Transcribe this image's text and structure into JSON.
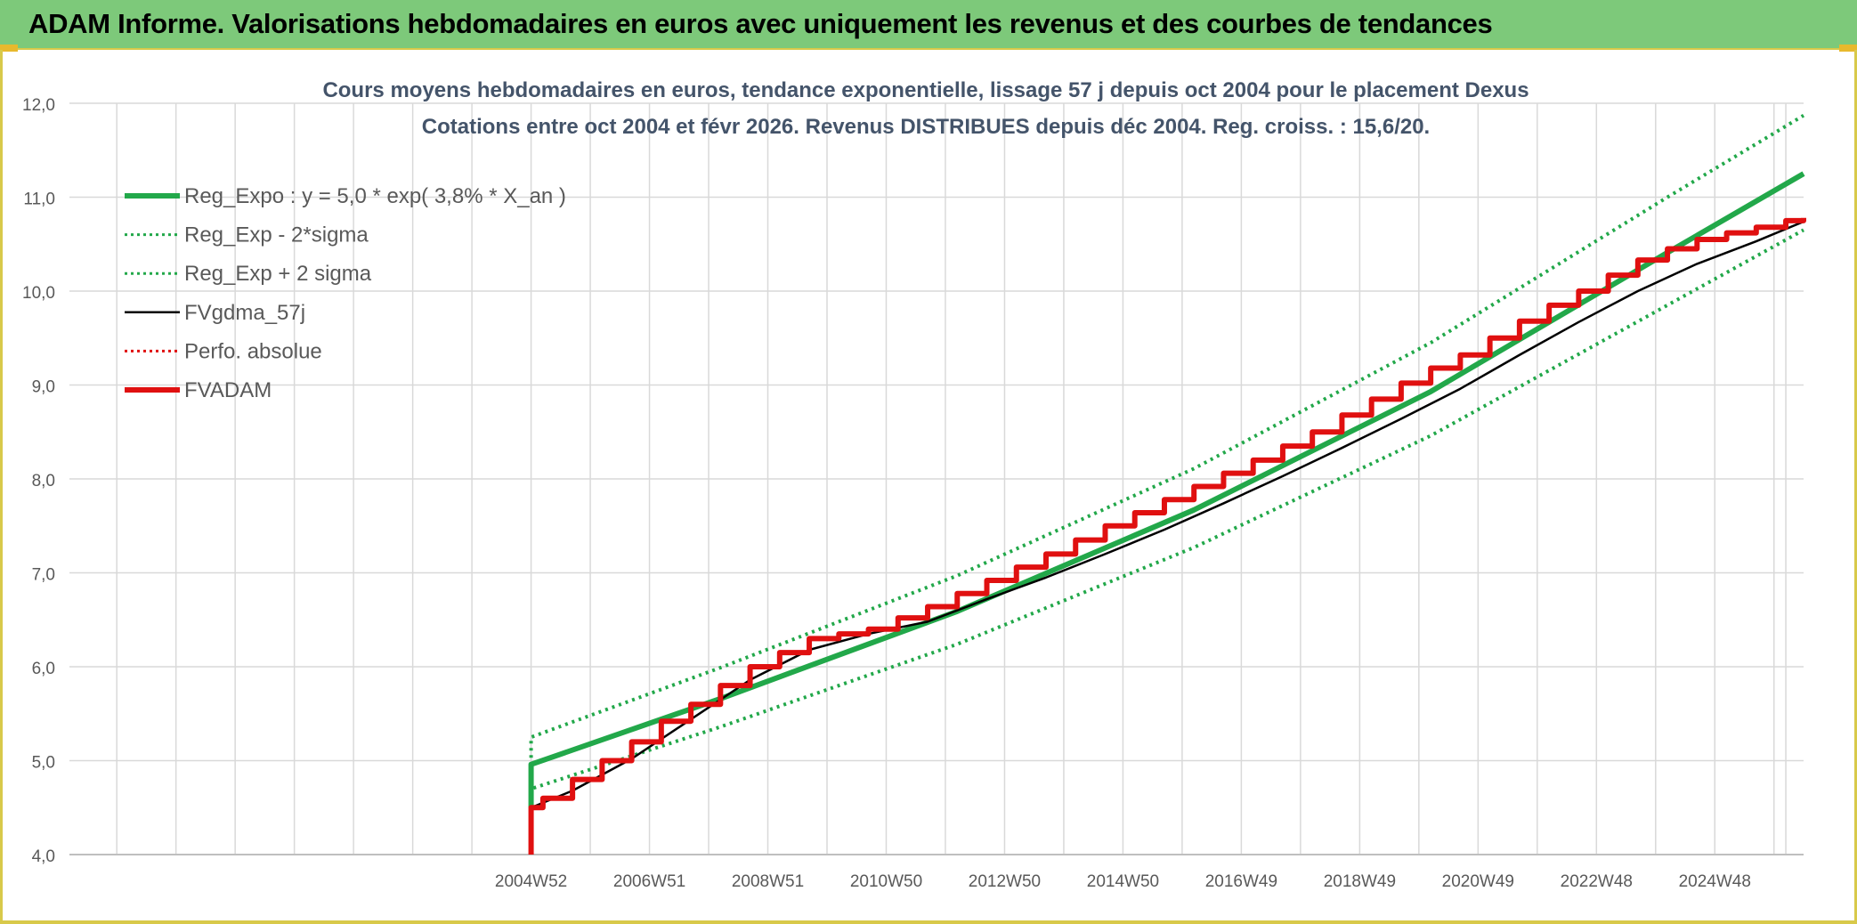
{
  "page": {
    "banner": "ADAM Informe. Valorisations hebdomadaires en euros avec uniquement les revenus et des courbes de tendances"
  },
  "chart_data": {
    "type": "line",
    "title": "Cours moyens hebdomadaires en euros, tendance exponentielle, lissage 57 j depuis oct 2004 pour le placement Dexus",
    "subtitle": "Cotations entre oct 2004 et févr 2026. Revenus DISTRIBUES depuis déc 2004. Reg. croiss. : 15,6/20.",
    "xlabel": "",
    "ylabel": "",
    "ylim": [
      4.0,
      12.0
    ],
    "yticks": [
      "4,0",
      "5,0",
      "6,0",
      "7,0",
      "8,0",
      "9,0",
      "10,0",
      "11,0",
      "12,0"
    ],
    "x_tick_labels": [
      "2004W52",
      "2006W51",
      "2008W51",
      "2010W50",
      "2012W50",
      "2014W50",
      "2016W49",
      "2018W49",
      "2020W49",
      "2022W48",
      "2024W48"
    ],
    "x_range": [
      1997.0,
      2026.3
    ],
    "grid": true,
    "legend_position": "top-left",
    "colors": {
      "reg": "#22a84a",
      "fvgdma": "#000000",
      "perfo": "#e01010",
      "fvadam": "#e01010"
    },
    "series": [
      {
        "name": "Reg_Expo : y = 5,0 * exp( 3,8% *  X_an )",
        "style": "solid-thick",
        "color": "#22a84a",
        "x": [
          2004.8,
          2004.8,
          2008.0,
          2012.0,
          2016.0,
          2020.0,
          2024.0,
          2026.3
        ],
        "y": [
          4.5,
          4.96,
          5.66,
          6.59,
          7.67,
          8.93,
          10.41,
          11.25
        ]
      },
      {
        "name": "Reg_Exp - 2*sigma",
        "style": "dotted",
        "color": "#22a84a",
        "x": [
          2004.8,
          2004.8,
          2008.0,
          2012.0,
          2016.0,
          2020.0,
          2024.0,
          2026.3
        ],
        "y": [
          4.5,
          4.7,
          5.36,
          6.24,
          7.27,
          8.46,
          9.85,
          10.65
        ]
      },
      {
        "name": "Reg_Exp + 2 sigma",
        "style": "dotted",
        "color": "#22a84a",
        "x": [
          2004.8,
          2004.8,
          2008.0,
          2012.0,
          2016.0,
          2020.0,
          2024.0,
          2026.3
        ],
        "y": [
          4.5,
          5.25,
          5.99,
          6.97,
          8.11,
          9.45,
          11.0,
          11.87
        ]
      },
      {
        "name": "FVgdma_57j",
        "style": "solid-thin",
        "color": "#000000",
        "x": [
          2004.8,
          2005.5,
          2006.5,
          2007.5,
          2008.5,
          2009.5,
          2010.5,
          2011.5,
          2012.5,
          2013.5,
          2014.5,
          2015.5,
          2016.5,
          2017.5,
          2018.5,
          2019.5,
          2020.5,
          2021.5,
          2022.5,
          2023.5,
          2024.5,
          2025.5,
          2026.3
        ],
        "y": [
          4.5,
          4.68,
          5.02,
          5.44,
          5.86,
          6.18,
          6.35,
          6.48,
          6.72,
          6.95,
          7.2,
          7.46,
          7.74,
          8.03,
          8.33,
          8.64,
          8.96,
          9.32,
          9.67,
          10.0,
          10.29,
          10.53,
          10.74
        ]
      },
      {
        "name": "Perfo. absolue",
        "style": "dotted",
        "color": "#e01010",
        "x": [],
        "y": []
      },
      {
        "name": "FVADAM",
        "style": "step-thick",
        "color": "#e01010",
        "x": [
          2004.8,
          2004.8,
          2005.0,
          2005.5,
          2006.0,
          2006.5,
          2007.0,
          2007.5,
          2008.0,
          2008.5,
          2009.0,
          2009.5,
          2010.0,
          2010.5,
          2011.0,
          2011.5,
          2012.0,
          2012.5,
          2013.0,
          2013.5,
          2014.0,
          2014.5,
          2015.0,
          2015.5,
          2016.0,
          2016.5,
          2017.0,
          2017.5,
          2018.0,
          2018.5,
          2019.0,
          2019.5,
          2020.0,
          2020.5,
          2021.0,
          2021.5,
          2022.0,
          2022.5,
          2023.0,
          2023.5,
          2024.0,
          2024.5,
          2025.0,
          2025.5,
          2026.0,
          2026.3
        ],
        "y": [
          4.0,
          4.5,
          4.6,
          4.8,
          5.0,
          5.2,
          5.42,
          5.6,
          5.8,
          6.0,
          6.15,
          6.3,
          6.35,
          6.4,
          6.52,
          6.64,
          6.78,
          6.92,
          7.06,
          7.2,
          7.35,
          7.5,
          7.64,
          7.78,
          7.92,
          8.06,
          8.2,
          8.35,
          8.5,
          8.68,
          8.85,
          9.02,
          9.18,
          9.32,
          9.5,
          9.68,
          9.85,
          10.0,
          10.17,
          10.33,
          10.45,
          10.55,
          10.62,
          10.68,
          10.75,
          10.78
        ]
      }
    ]
  }
}
